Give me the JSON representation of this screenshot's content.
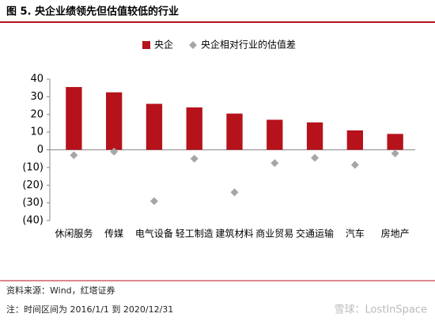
{
  "chart_data": {
    "type": "bar",
    "title": "图 5. 央企业绩领先但估值较低的行业",
    "categories": [
      "休闲服务",
      "传媒",
      "电气设备",
      "轻工制造",
      "建筑材料",
      "商业贸易",
      "交通运输",
      "汽车",
      "房地产"
    ],
    "series": [
      {
        "name": "央企",
        "type": "bar",
        "color": "#b5121b",
        "values": [
          35.5,
          32.5,
          26,
          24,
          20.5,
          17,
          15.5,
          11,
          9
        ]
      },
      {
        "name": "央企相对行业的估值差",
        "type": "scatter",
        "marker": "diamond",
        "color": "#a6a6a6",
        "values": [
          -3,
          -1,
          -29,
          -5,
          -24,
          -7.5,
          -4.5,
          -8.5,
          -2
        ]
      }
    ],
    "ylim": [
      -40,
      40
    ],
    "yticks": [
      {
        "value": -40,
        "label": "(40)"
      },
      {
        "value": -30,
        "label": "(30)"
      },
      {
        "value": -20,
        "label": "(20)"
      },
      {
        "value": -10,
        "label": "(10)"
      },
      0,
      10,
      20,
      30,
      40
    ],
    "grid": false,
    "legend": "top",
    "source": "资料来源：Wind，红塔证券",
    "note": "注：时间区间为 2016/1/1 到 2020/12/31",
    "watermark": "雪球：LostInSpace"
  }
}
